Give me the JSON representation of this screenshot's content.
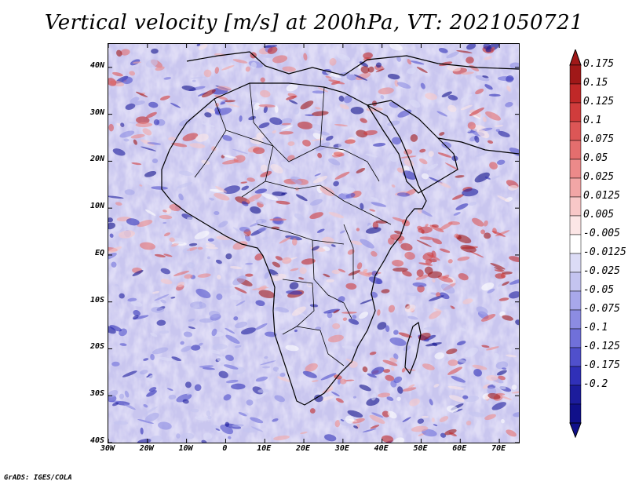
{
  "title": "Vertical velocity [m/s] at 200hPa, VT: 2021050721",
  "credit": "GrADS: IGES/COLA",
  "map": {
    "lon_range": [
      -30,
      75
    ],
    "lat_range": [
      -40,
      45
    ],
    "lat_ticks": [
      "40N",
      "30N",
      "20N",
      "10N",
      "EQ",
      "10S",
      "20S",
      "30S",
      "40S"
    ],
    "lat_values": [
      40,
      30,
      20,
      10,
      0,
      -10,
      -20,
      -30,
      -40
    ],
    "lon_ticks": [
      "30W",
      "20W",
      "10W",
      "0",
      "10E",
      "20E",
      "30E",
      "40E",
      "50E",
      "60E",
      "70E"
    ],
    "lon_values": [
      -30,
      -20,
      -10,
      0,
      10,
      20,
      30,
      40,
      50,
      60,
      70
    ]
  },
  "colorbar": {
    "labels": [
      "0.175",
      "0.15",
      "0.125",
      "0.1",
      "0.075",
      "0.05",
      "0.025",
      "0.0125",
      "0.005",
      "-0.005",
      "-0.0125",
      "-0.025",
      "-0.05",
      "-0.075",
      "-0.1",
      "-0.125",
      "-0.175",
      "-0.2"
    ],
    "colors": [
      "#a01818",
      "#c02828",
      "#d03c3c",
      "#dc5656",
      "#e46e6e",
      "#ec8a8a",
      "#f2a6a6",
      "#f8c8c8",
      "#fce6e6",
      "#ffffff",
      "#dcdcf6",
      "#c4c4f0",
      "#a8a8ea",
      "#8c8ce2",
      "#7070da",
      "#5050cc",
      "#3030b8",
      "#1c1c9c",
      "#10108a"
    ]
  }
}
